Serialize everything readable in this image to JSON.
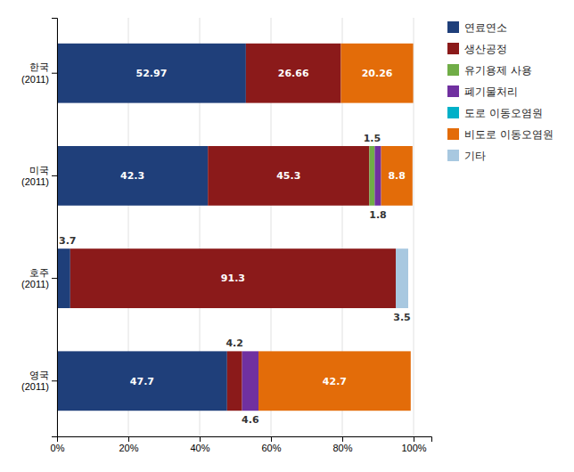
{
  "chart_data": {
    "type": "bar",
    "orientation": "horizontal",
    "stacked": true,
    "categories": [
      "영국\n(2011)",
      "호주\n(2011)",
      "미국\n(2011)",
      "한국\n(2011)"
    ],
    "series": [
      {
        "name": "연료연소",
        "color": "#1F3F7A",
        "values": [
          47.7,
          3.7,
          42.3,
          52.97
        ]
      },
      {
        "name": "생산공정",
        "color": "#8B1A1A",
        "values": [
          4.2,
          91.3,
          45.3,
          26.66
        ]
      },
      {
        "name": "유기용제 사용",
        "color": "#70AD47",
        "values": [
          0.0,
          0.0,
          1.5,
          0.0
        ]
      },
      {
        "name": "폐기물처리",
        "color": "#7030A0",
        "values": [
          4.6,
          0.0,
          1.8,
          0.0
        ]
      },
      {
        "name": "도로 이동오염원",
        "color": "#00B0C8",
        "values": [
          0.0,
          0.0,
          0.0,
          0.0
        ]
      },
      {
        "name": "비도로 이동오염원",
        "color": "#E36C09",
        "values": [
          42.7,
          0.0,
          8.8,
          20.26
        ]
      },
      {
        "name": "기타",
        "color": "#A8C8E0",
        "values": [
          0.0,
          3.5,
          0.0,
          0.0
        ]
      }
    ],
    "xlim": [
      0,
      105
    ],
    "xticks": [
      {
        "value": 0,
        "label": "0%"
      },
      {
        "value": 20,
        "label": "20%"
      },
      {
        "value": 40,
        "label": "40%"
      },
      {
        "value": 60,
        "label": "60%"
      },
      {
        "value": 80,
        "label": "80%"
      },
      {
        "value": 100,
        "label": "100%"
      }
    ],
    "grid": true,
    "legend": "right",
    "data_labels": true
  }
}
